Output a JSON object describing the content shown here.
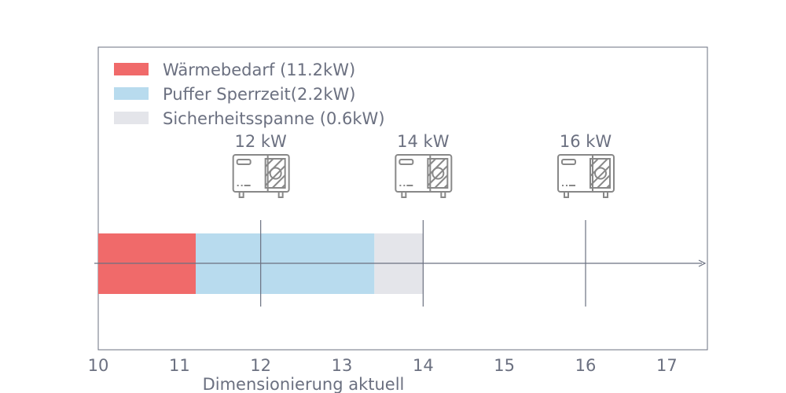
{
  "chart_data": {
    "type": "bar",
    "orientation": "horizontal-stacked",
    "xlabel": "Dimensionierung aktuell",
    "xlim": [
      10,
      17.5
    ],
    "xticks": [
      10,
      11,
      12,
      13,
      14,
      15,
      16,
      17
    ],
    "grid": false,
    "legend_position": "top-left",
    "series": [
      {
        "name": "Wärmebedarf (11.2kW)",
        "start": 0,
        "value": 11.2,
        "color": "#f06a6a"
      },
      {
        "name": "Puffer Sperrzeit(2.2kW)",
        "start": 11.2,
        "value": 2.2,
        "color": "#b8dbee"
      },
      {
        "name": "Sicherheitsspanne (0.6kW)",
        "start": 13.4,
        "value": 0.6,
        "color": "#e4e5ea"
      }
    ],
    "markers": [
      {
        "x": 12,
        "label": "12 kW",
        "icon": "heat-pump-icon"
      },
      {
        "x": 14,
        "label": "14 kW",
        "icon": "heat-pump-icon"
      },
      {
        "x": 16,
        "label": "16 kW",
        "icon": "heat-pump-icon"
      }
    ],
    "text_color": "#6b7080"
  }
}
